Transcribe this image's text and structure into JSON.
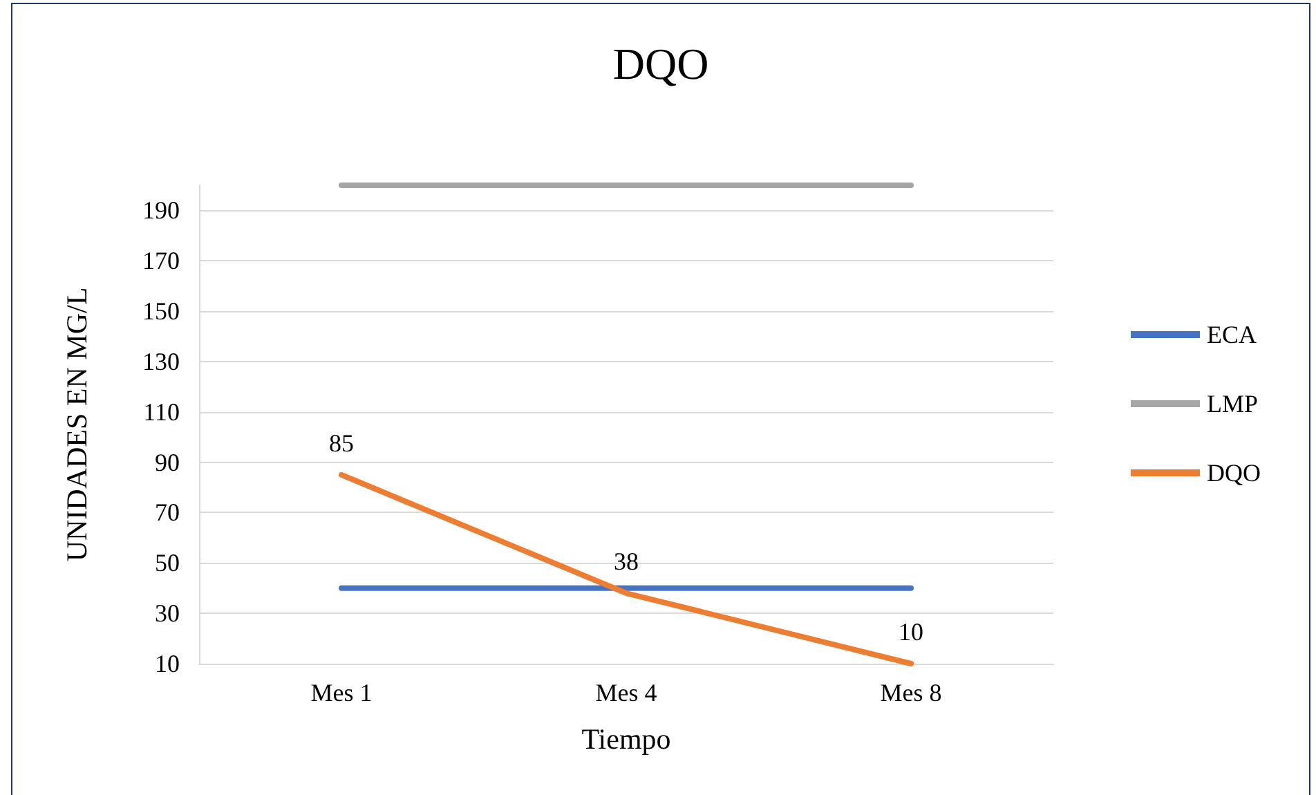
{
  "chart_data": {
    "type": "line",
    "title": "DQO",
    "xlabel": "Tiempo",
    "ylabel": "UNIDADES EN MG/L",
    "categories": [
      "Mes 1",
      "Mes 4",
      "Mes 8"
    ],
    "series": [
      {
        "name": "ECA",
        "color": "#4472c4",
        "values": [
          40,
          40,
          40
        ]
      },
      {
        "name": "LMP",
        "color": "#a5a5a5",
        "values": [
          200,
          200,
          200
        ]
      },
      {
        "name": "DQO",
        "color": "#ed7d31",
        "values": [
          85,
          38,
          10
        ],
        "value_labels": [
          "85",
          "38",
          "10"
        ]
      }
    ],
    "ylim": [
      10,
      200
    ],
    "yticks": [
      10,
      30,
      50,
      70,
      90,
      110,
      130,
      150,
      170,
      190
    ],
    "grid": "y",
    "legend": "right",
    "marker": "none",
    "line_style": "solid"
  }
}
